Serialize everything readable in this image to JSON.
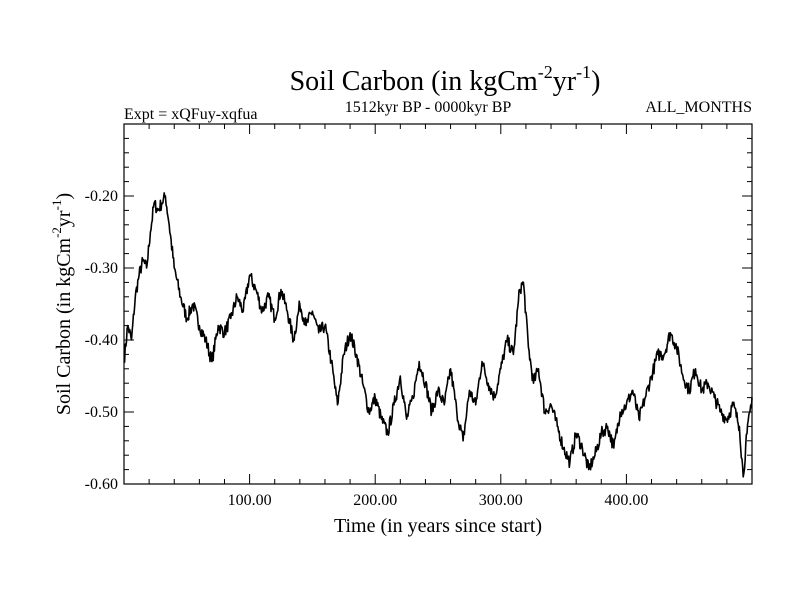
{
  "chart_data": {
    "type": "line",
    "title": "Soil Carbon (in kgCm",
    "title_sup1": "-2",
    "title_mid": "yr",
    "title_sup2": "-1",
    "title_end": ")",
    "subtitle_left": "Expt = xQFuy-xqfua",
    "subtitle_center": "1512kyr BP - 0000kyr BP",
    "subtitle_right": "ALL_MONTHS",
    "xlabel": "Time (in years since start)",
    "ylabel": "Soil Carbon (in kgCm",
    "ylabel_sup1": "-2",
    "ylabel_mid": "yr",
    "ylabel_sup2": "-1",
    "ylabel_end": ")",
    "xlim": [
      0,
      500
    ],
    "ylim": [
      -0.6,
      -0.1
    ],
    "x_ticks": [
      100,
      200,
      300,
      400
    ],
    "x_tick_labels": [
      "100.00",
      "200.00",
      "300.00",
      "400.00"
    ],
    "y_ticks": [
      -0.6,
      -0.5,
      -0.4,
      -0.3,
      -0.2
    ],
    "y_tick_labels": [
      "-0.60",
      "-0.50",
      "-0.40",
      "-0.30",
      "-0.20"
    ],
    "line_color": "#000000",
    "series": [
      {
        "name": "Soil Carbon",
        "x": [
          0,
          3,
          6,
          9,
          12,
          15,
          18,
          21,
          24,
          27,
          30,
          33,
          36,
          40,
          45,
          50,
          55,
          60,
          65,
          70,
          75,
          80,
          85,
          90,
          95,
          100,
          105,
          110,
          115,
          120,
          125,
          130,
          135,
          140,
          145,
          150,
          155,
          160,
          165,
          170,
          175,
          180,
          185,
          190,
          195,
          200,
          205,
          210,
          215,
          220,
          225,
          230,
          235,
          240,
          245,
          250,
          255,
          260,
          265,
          270,
          275,
          280,
          285,
          290,
          295,
          300,
          305,
          310,
          315,
          318,
          322,
          326,
          330,
          335,
          340,
          345,
          350,
          355,
          360,
          365,
          370,
          375,
          380,
          385,
          390,
          395,
          400,
          405,
          410,
          415,
          420,
          425,
          430,
          435,
          440,
          445,
          450,
          455,
          460,
          465,
          470,
          475,
          480,
          485,
          490,
          493,
          496,
          500
        ],
        "values": [
          -0.43,
          -0.38,
          -0.4,
          -0.34,
          -0.31,
          -0.29,
          -0.3,
          -0.25,
          -0.21,
          -0.22,
          -0.21,
          -0.2,
          -0.24,
          -0.3,
          -0.34,
          -0.37,
          -0.35,
          -0.38,
          -0.4,
          -0.43,
          -0.38,
          -0.39,
          -0.37,
          -0.34,
          -0.36,
          -0.31,
          -0.33,
          -0.36,
          -0.34,
          -0.37,
          -0.33,
          -0.36,
          -0.4,
          -0.35,
          -0.38,
          -0.36,
          -0.39,
          -0.38,
          -0.43,
          -0.49,
          -0.42,
          -0.39,
          -0.42,
          -0.46,
          -0.5,
          -0.48,
          -0.51,
          -0.53,
          -0.49,
          -0.45,
          -0.51,
          -0.48,
          -0.43,
          -0.46,
          -0.5,
          -0.47,
          -0.49,
          -0.44,
          -0.5,
          -0.54,
          -0.47,
          -0.49,
          -0.43,
          -0.46,
          -0.48,
          -0.44,
          -0.4,
          -0.42,
          -0.33,
          -0.32,
          -0.41,
          -0.46,
          -0.44,
          -0.5,
          -0.49,
          -0.52,
          -0.55,
          -0.57,
          -0.53,
          -0.55,
          -0.58,
          -0.56,
          -0.53,
          -0.52,
          -0.55,
          -0.5,
          -0.49,
          -0.47,
          -0.51,
          -0.48,
          -0.45,
          -0.42,
          -0.42,
          -0.39,
          -0.41,
          -0.45,
          -0.47,
          -0.44,
          -0.47,
          -0.46,
          -0.48,
          -0.5,
          -0.51,
          -0.49,
          -0.52,
          -0.59,
          -0.53,
          -0.48
        ]
      }
    ]
  }
}
